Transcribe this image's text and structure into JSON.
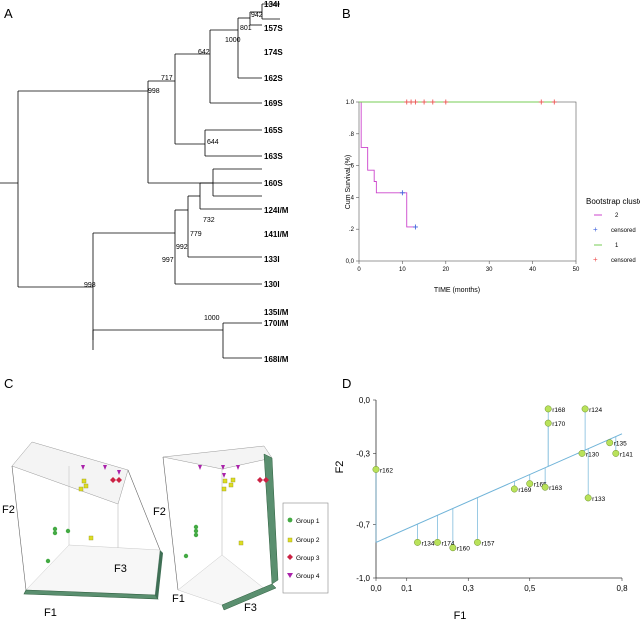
{
  "panels": {
    "A": {
      "label": "A"
    },
    "B": {
      "label": "B"
    },
    "C": {
      "label": "C"
    },
    "D": {
      "label": "D"
    }
  },
  "tree": {
    "leaves": [
      "134I",
      "157S",
      "174S",
      "162S",
      "169S",
      "165S",
      "163S",
      "160S",
      "124I/M",
      "141I/M",
      "133I",
      "130I",
      "135I/M",
      "170I/M",
      "168I/M"
    ],
    "bootstrap": [
      "942",
      "801",
      "1000",
      "642",
      "717",
      "998",
      "644",
      "732",
      "779",
      "992",
      "997",
      "998",
      "1000"
    ]
  },
  "chart_data": [
    {
      "type": "line",
      "panel": "B",
      "ylabel": "Cum Survival (%)",
      "xlabel": "TIME (months)",
      "xlim": [
        0,
        50
      ],
      "ylim": [
        0,
        1.0
      ],
      "xticks": [
        "0",
        "10",
        "20",
        "30",
        "40",
        "50"
      ],
      "yticks": [
        "0,0",
        ".2",
        ".4",
        ".6",
        ".8",
        "1.0"
      ],
      "legend_title": "Bootstrap clusters",
      "legend": [
        "2",
        "censored",
        "1",
        "censored"
      ],
      "series": [
        {
          "name": "2",
          "color": "#cc44cc",
          "x": [
            0,
            0.5,
            0.5,
            2.0,
            2.0,
            3.5,
            3.5,
            4.0,
            4.0,
            11.0,
            11.0,
            13.0
          ],
          "y": [
            1.0,
            1.0,
            0.714,
            0.714,
            0.571,
            0.571,
            0.5,
            0.5,
            0.429,
            0.429,
            0.214,
            0.214
          ],
          "censored_x": [
            10,
            13
          ],
          "censored_y": [
            0.429,
            0.214
          ],
          "censor_color": "#4466dd"
        },
        {
          "name": "1",
          "color": "#77cc55",
          "x": [
            0,
            45
          ],
          "y": [
            1.0,
            1.0
          ],
          "censored_x": [
            11,
            12,
            13,
            15,
            17,
            20,
            42,
            45
          ],
          "censored_y": [
            1,
            1,
            1,
            1,
            1,
            1,
            1,
            1
          ],
          "censor_color": "#ee5555"
        }
      ]
    },
    {
      "type": "scatter",
      "panel": "D",
      "xlabel": "F1",
      "ylabel": "F2",
      "xlim": [
        0,
        0.8
      ],
      "ylim": [
        -1.0,
        0.0
      ],
      "xticks": [
        "0,0",
        "0,1",
        "0,3",
        "0,5",
        "0,8"
      ],
      "xtick_values": [
        0,
        0.1,
        0.3,
        0.5,
        0.8
      ],
      "yticks": [
        "0,0",
        "-0,3",
        "-0,7",
        "-1,0"
      ],
      "ytick_values": [
        0,
        -0.3,
        -0.7,
        -1.0
      ],
      "regression": {
        "x": [
          0,
          0.8
        ],
        "y": [
          -0.8,
          -0.19
        ]
      },
      "points": [
        {
          "label": "r162",
          "x": 0.0,
          "y": -0.39
        },
        {
          "label": "r134",
          "x": 0.135,
          "y": -0.8
        },
        {
          "label": "r174",
          "x": 0.2,
          "y": -0.8
        },
        {
          "label": "r160",
          "x": 0.25,
          "y": -0.83
        },
        {
          "label": "r157",
          "x": 0.33,
          "y": -0.8
        },
        {
          "label": "r169",
          "x": 0.45,
          "y": -0.5
        },
        {
          "label": "r165",
          "x": 0.5,
          "y": -0.47
        },
        {
          "label": "r163",
          "x": 0.55,
          "y": -0.49
        },
        {
          "label": "r168",
          "x": 0.56,
          "y": -0.05
        },
        {
          "label": "r170",
          "x": 0.56,
          "y": -0.13
        },
        {
          "label": "r124",
          "x": 0.68,
          "y": -0.05
        },
        {
          "label": "r130",
          "x": 0.67,
          "y": -0.3
        },
        {
          "label": "r133",
          "x": 0.69,
          "y": -0.55
        },
        {
          "label": "r135",
          "x": 0.76,
          "y": -0.24
        },
        {
          "label": "r141",
          "x": 0.78,
          "y": -0.3
        }
      ]
    }
  ],
  "pca3d": {
    "axes": [
      "F1",
      "F2",
      "F3"
    ],
    "legend": [
      "Group 1",
      "Group 2",
      "Group 3",
      "Group 4"
    ],
    "colors": {
      "group1": "#44aa44",
      "group2": "#dddd22",
      "group3": "#cc2244",
      "group4": "#aa22aa"
    }
  }
}
